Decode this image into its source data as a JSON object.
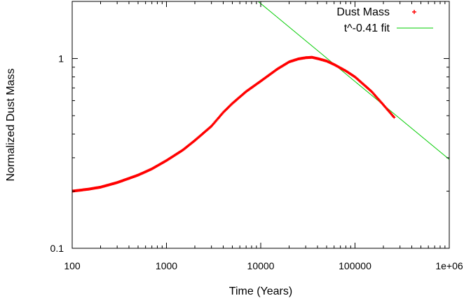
{
  "chart_data": {
    "type": "scatter",
    "xlabel": "Time (Years)",
    "ylabel": "Normalized Dust Mass",
    "x_scale": "log",
    "y_scale": "log",
    "xlim": [
      100,
      1000000
    ],
    "ylim": [
      0.1,
      2
    ],
    "x_ticks": [
      {
        "value": 100,
        "label": "100"
      },
      {
        "value": 1000,
        "label": "1000"
      },
      {
        "value": 10000,
        "label": "10000"
      },
      {
        "value": 100000,
        "label": "100000"
      },
      {
        "value": 1000000,
        "label": "1e+06"
      }
    ],
    "y_ticks": [
      {
        "value": 0.1,
        "label": "0.1"
      },
      {
        "value": 1,
        "label": "1"
      }
    ],
    "grid": false,
    "legend_position": "top-right",
    "series": [
      {
        "name": "Dust Mass",
        "type": "scatter",
        "marker": "+",
        "color": "#ff0000",
        "x": [
          100,
          150,
          200,
          300,
          500,
          700,
          1000,
          1500,
          2000,
          3000,
          4000,
          5000,
          7000,
          10000,
          15000,
          20000,
          25000,
          30000,
          35000,
          40000,
          50000,
          60000,
          80000,
          100000,
          150000,
          200000,
          260000
        ],
        "y": [
          0.2,
          0.205,
          0.21,
          0.222,
          0.243,
          0.262,
          0.29,
          0.33,
          0.37,
          0.44,
          0.52,
          0.58,
          0.67,
          0.76,
          0.88,
          0.96,
          0.995,
          1.01,
          1.015,
          1.0,
          0.97,
          0.93,
          0.86,
          0.8,
          0.67,
          0.57,
          0.49
        ]
      },
      {
        "name": "t^-0.41 fit",
        "type": "line",
        "color": "#00cc00",
        "x": [
          9500,
          1000000
        ],
        "y": [
          1.99,
          0.294
        ]
      }
    ]
  }
}
